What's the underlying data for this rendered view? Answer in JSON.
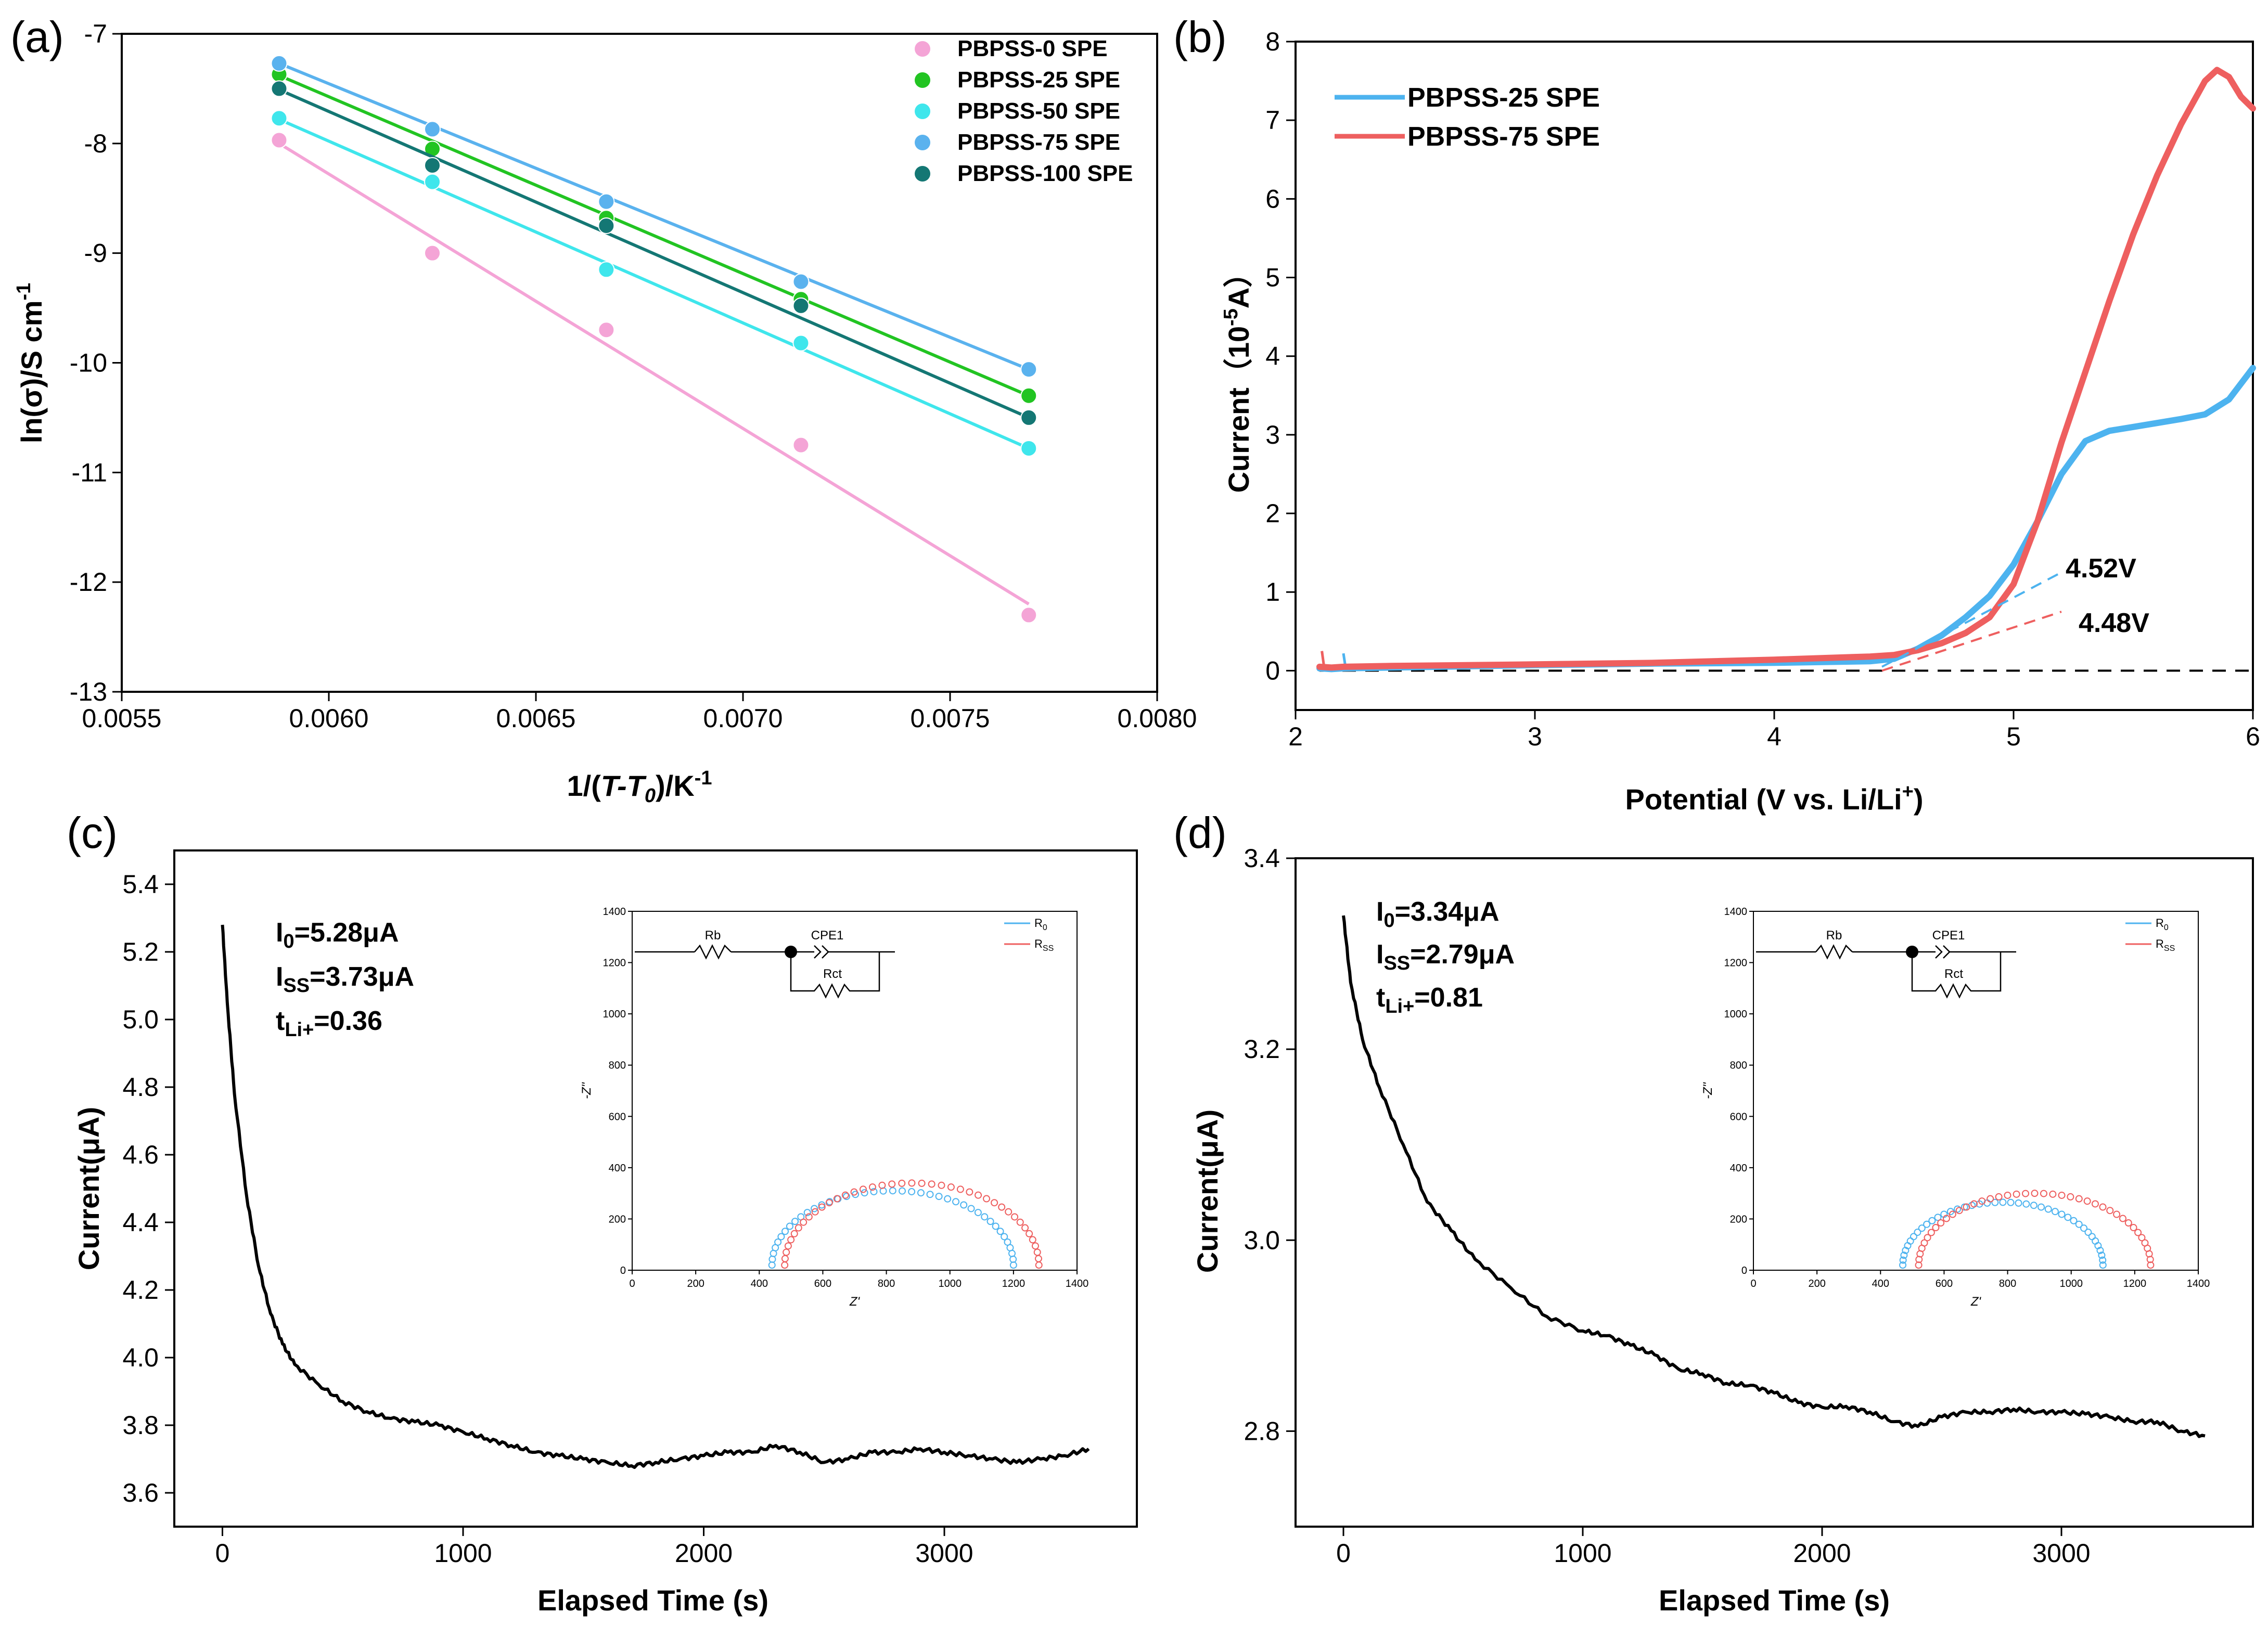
{
  "chart_data": [
    {
      "panel": "(a)",
      "type": "scatter",
      "xlabel_main": "1/(",
      "xlabel_italic": "T-T",
      "xlabel_sub": "0",
      "xlabel_end": ")/K",
      "xlabel_sup": "-1",
      "ylabel_main": "ln(σ)/S cm",
      "ylabel_sup": "-1",
      "xlim": [
        0.0055,
        0.008
      ],
      "ylim": [
        -13,
        -7
      ],
      "xticks": [
        "0.0055",
        "0.0060",
        "0.0065",
        "0.0070",
        "0.0075",
        "0.0080"
      ],
      "yticks": [
        "-7",
        "-8",
        "-9",
        "-10",
        "-11",
        "-12",
        "-13"
      ],
      "legend_position": "top-right",
      "x": [
        0.00588,
        0.00625,
        0.00667,
        0.00714,
        0.00769
      ],
      "series": [
        {
          "name": "PBPSS-0   SPE",
          "color": "#f4a4d6",
          "values": [
            -7.97,
            -9.0,
            -9.7,
            -10.75,
            -12.3
          ],
          "fit": [
            -8.0,
            -12.2
          ]
        },
        {
          "name": "PBPSS-25  SPE",
          "color": "#22c422",
          "values": [
            -7.37,
            -8.05,
            -8.68,
            -9.42,
            -10.3
          ],
          "fit": [
            -7.38,
            -10.3
          ]
        },
        {
          "name": "PBPSS-50  SPE",
          "color": "#3fe6ec",
          "values": [
            -7.77,
            -8.35,
            -9.15,
            -9.82,
            -10.78
          ],
          "fit": [
            -7.78,
            -10.78
          ]
        },
        {
          "name": "PBPSS-75  SPE",
          "color": "#5ab2ee",
          "values": [
            -7.27,
            -7.87,
            -8.53,
            -9.26,
            -10.06
          ],
          "fit": [
            -7.27,
            -10.06
          ]
        },
        {
          "name": "PBPSS-100 SPE",
          "color": "#147774",
          "values": [
            -7.5,
            -8.2,
            -8.75,
            -9.48,
            -10.5
          ],
          "fit": [
            -7.51,
            -10.5
          ]
        }
      ]
    },
    {
      "panel": "(b)",
      "type": "line",
      "xlabel_main": "Potential (V vs. Li/Li",
      "xlabel_sup": "+",
      "xlabel_end": ")",
      "ylabel_main": "Current（10",
      "ylabel_sup": "-5",
      "ylabel_end": "A）",
      "xlim": [
        2,
        6
      ],
      "ylim": [
        -0.5,
        8
      ],
      "xticks": [
        "2",
        "3",
        "4",
        "5",
        "6"
      ],
      "yticks": [
        "0",
        "1",
        "2",
        "3",
        "4",
        "5",
        "6",
        "7",
        "8"
      ],
      "legend_position": "top-left",
      "annotations": [
        "4.52V",
        "4.48V"
      ],
      "series": [
        {
          "name": "PBPSS-25   SPE",
          "color": "#4db3ef",
          "x": [
            2.1,
            2.15,
            2.2,
            2.4,
            3.0,
            3.5,
            4.0,
            4.4,
            4.5,
            4.6,
            4.7,
            4.8,
            4.9,
            5.0,
            5.1,
            5.2,
            5.3,
            5.4,
            5.5,
            5.6,
            5.7,
            5.8,
            5.9,
            6.0
          ],
          "values": [
            0.03,
            0.02,
            0.03,
            0.04,
            0.07,
            0.09,
            0.1,
            0.12,
            0.15,
            0.28,
            0.45,
            0.68,
            0.95,
            1.35,
            1.9,
            2.5,
            2.92,
            3.05,
            3.1,
            3.15,
            3.2,
            3.26,
            3.45,
            3.85
          ]
        },
        {
          "name": "PBPSS-75   SPE",
          "color": "#ee5f5f",
          "x": [
            2.1,
            2.15,
            2.2,
            2.4,
            3.0,
            3.5,
            4.0,
            4.4,
            4.5,
            4.6,
            4.7,
            4.8,
            4.9,
            5.0,
            5.1,
            5.2,
            5.3,
            5.4,
            5.5,
            5.6,
            5.7,
            5.8,
            5.85,
            5.9,
            5.95,
            6.0
          ],
          "values": [
            0.05,
            0.04,
            0.05,
            0.06,
            0.08,
            0.1,
            0.14,
            0.18,
            0.2,
            0.26,
            0.35,
            0.48,
            0.68,
            1.1,
            1.9,
            2.9,
            3.8,
            4.7,
            5.55,
            6.3,
            6.95,
            7.5,
            7.64,
            7.55,
            7.3,
            7.15
          ]
        }
      ],
      "onset_lines": [
        {
          "color": "#4db3ef",
          "x": [
            4.45,
            5.2
          ],
          "values": [
            0.05,
            1.25
          ]
        },
        {
          "color": "#ee5f5f",
          "x": [
            4.45,
            5.2
          ],
          "values": [
            0.0,
            0.75
          ]
        }
      ],
      "baseline": 0
    },
    {
      "panel": "(c)",
      "type": "line",
      "xlabel": "Elapsed Time (s)",
      "ylabel": "Current(μA)",
      "xlim": [
        -200,
        3800
      ],
      "ylim": [
        3.5,
        5.5
      ],
      "xticks": [
        "0",
        "1000",
        "2000",
        "3000"
      ],
      "yticks": [
        "3.6",
        "3.8",
        "4.0",
        "4.2",
        "4.4",
        "4.6",
        "4.8",
        "5.0",
        "5.2",
        "5.4"
      ],
      "stats": {
        "I0_value": "=5.28μA",
        "Iss_value": "=3.73μA",
        "t_value": "=0.36"
      },
      "series": [
        {
          "name": "",
          "color": "#000000",
          "x": [
            0,
            20,
            50,
            100,
            150,
            200,
            250,
            300,
            400,
            500,
            600,
            700,
            800,
            900,
            1000,
            1100,
            1200,
            1300,
            1400,
            1500,
            1600,
            1700,
            1800,
            1900,
            2000,
            2100,
            2200,
            2300,
            2400,
            2500,
            2600,
            2700,
            2800,
            2900,
            3000,
            3100,
            3200,
            3300,
            3400,
            3500,
            3600
          ],
          "values": [
            5.28,
            5.05,
            4.78,
            4.48,
            4.27,
            4.13,
            4.04,
            3.98,
            3.92,
            3.87,
            3.84,
            3.82,
            3.81,
            3.8,
            3.78,
            3.76,
            3.74,
            3.72,
            3.71,
            3.7,
            3.69,
            3.68,
            3.69,
            3.7,
            3.71,
            3.72,
            3.72,
            3.74,
            3.72,
            3.69,
            3.7,
            3.72,
            3.72,
            3.73,
            3.72,
            3.71,
            3.7,
            3.69,
            3.7,
            3.71,
            3.73
          ]
        }
      ],
      "inset": {
        "xlabel": "Z'",
        "ylabel": "-Z''",
        "xlim": [
          0,
          1400
        ],
        "ylim": [
          0,
          1400
        ],
        "xticks": [
          "0",
          "200",
          "400",
          "600",
          "800",
          "1000",
          "1200",
          "1400"
        ],
        "yticks": [
          "0",
          "200",
          "400",
          "600",
          "800",
          "1000",
          "1200",
          "1400"
        ],
        "circuit": {
          "r1": "Rb",
          "cpe": "CPE1",
          "r2": "Rct"
        },
        "legend": [
          {
            "base": "R",
            "sub": "0",
            "color": "#4db3ef"
          },
          {
            "base": "R",
            "sub": "SS",
            "color": "#ee5f5f"
          }
        ],
        "arcs": [
          {
            "color": "#4db3ef",
            "x_start": 440,
            "x_end": 1200,
            "peak": 290
          },
          {
            "color": "#ee5f5f",
            "x_start": 480,
            "x_end": 1280,
            "peak": 320
          }
        ]
      }
    },
    {
      "panel": "(d)",
      "type": "line",
      "xlabel": "Elapsed Time (s)",
      "ylabel": "Current(μA)",
      "xlim": [
        -200,
        3800
      ],
      "ylim": [
        2.7,
        3.4
      ],
      "xticks": [
        "0",
        "1000",
        "2000",
        "3000"
      ],
      "yticks": [
        "2.8",
        "3.0",
        "3.2",
        "3.4"
      ],
      "stats": {
        "I0_value": "=3.34μA",
        "Iss_value": "=2.79μA",
        "t_value": "=0.81"
      },
      "series": [
        {
          "name": "",
          "color": "#000000",
          "x": [
            0,
            30,
            80,
            150,
            250,
            350,
            450,
            550,
            700,
            850,
            1000,
            1100,
            1200,
            1300,
            1400,
            1500,
            1600,
            1700,
            1800,
            1900,
            2000,
            2100,
            2200,
            2300,
            2400,
            2500,
            2600,
            2700,
            2800,
            2900,
            3000,
            3100,
            3200,
            3300,
            3400,
            3500,
            3600
          ],
          "values": [
            3.34,
            3.27,
            3.21,
            3.16,
            3.1,
            3.04,
            3.01,
            2.98,
            2.95,
            2.92,
            2.905,
            2.9,
            2.89,
            2.88,
            2.865,
            2.86,
            2.85,
            2.848,
            2.84,
            2.83,
            2.825,
            2.826,
            2.82,
            2.81,
            2.805,
            2.815,
            2.82,
            2.82,
            2.823,
            2.82,
            2.82,
            2.818,
            2.815,
            2.81,
            2.81,
            2.8,
            2.795
          ]
        }
      ],
      "inset": {
        "xlabel": "Z'",
        "ylabel": "-Z''",
        "xlim": [
          0,
          1400
        ],
        "ylim": [
          0,
          1400
        ],
        "xticks": [
          "0",
          "200",
          "400",
          "600",
          "800",
          "1000",
          "1200",
          "1400"
        ],
        "yticks": [
          "0",
          "200",
          "400",
          "600",
          "800",
          "1000",
          "1200",
          "1400"
        ],
        "circuit": {
          "r1": "Rb",
          "cpe": "CPE1",
          "r2": "Rct"
        },
        "legend": [
          {
            "base": "R",
            "sub": "0",
            "color": "#4db3ef"
          },
          {
            "base": "R",
            "sub": "SS",
            "color": "#ee5f5f"
          }
        ],
        "arcs": [
          {
            "color": "#4db3ef",
            "x_start": 470,
            "x_end": 1100,
            "peak": 245
          },
          {
            "color": "#ee5f5f",
            "x_start": 520,
            "x_end": 1250,
            "peak": 280
          }
        ]
      }
    }
  ]
}
